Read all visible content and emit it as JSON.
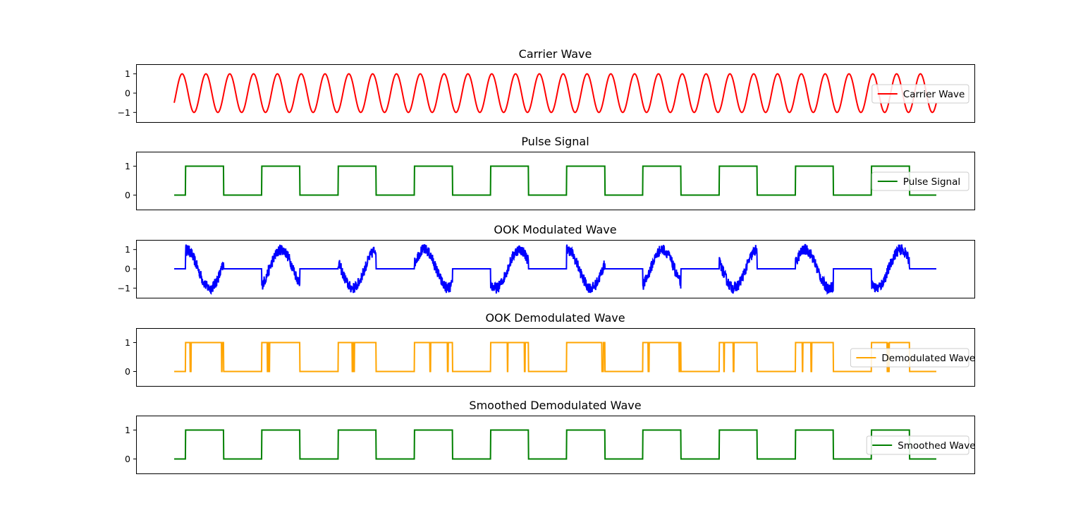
{
  "chart_data": [
    {
      "type": "line",
      "title": "Carrier Wave",
      "color": "#ff0000",
      "legend": "Carrier Wave",
      "legend_position": "right",
      "ylim": [
        -1.5,
        1.5
      ],
      "yticks": [
        {
          "value": 1,
          "label": "1"
        },
        {
          "value": 0,
          "label": "0"
        },
        {
          "value": -1,
          "label": "−1"
        }
      ],
      "xlim": [
        -0.05,
        1.05
      ],
      "xticks": false,
      "signal": {
        "kind": "sine",
        "cycles": 32,
        "phase_deg": -30
      }
    },
    {
      "type": "line",
      "title": "Pulse Signal",
      "color": "#008000",
      "legend": "Pulse Signal",
      "legend_position": "right",
      "ylim": [
        -0.5,
        1.5
      ],
      "yticks": [
        {
          "value": 1,
          "label": "1"
        },
        {
          "value": 0,
          "label": "0"
        }
      ],
      "xlim": [
        -0.05,
        1.05
      ],
      "xticks": false,
      "signal": {
        "kind": "pulse",
        "periods": 10,
        "on_start": 0.15,
        "on_end": 0.65
      }
    },
    {
      "type": "line",
      "title": "OOK Modulated Wave",
      "color": "#0000ff",
      "legend": "",
      "ylim": [
        -1.5,
        1.5
      ],
      "yticks": [
        {
          "value": 1,
          "label": "1"
        },
        {
          "value": 0,
          "label": "0"
        },
        {
          "value": -1,
          "label": "−1"
        }
      ],
      "xlim": [
        -0.05,
        1.05
      ],
      "xticks": false,
      "signal": {
        "kind": "ook",
        "periods": 10,
        "on_start": 0.15,
        "on_end": 0.65,
        "noise": 0.18
      }
    },
    {
      "type": "line",
      "title": "OOK Demodulated Wave",
      "color": "#ffa500",
      "legend": "Demodulated Wave",
      "legend_position": "right",
      "ylim": [
        -0.5,
        1.5
      ],
      "yticks": [
        {
          "value": 1,
          "label": "1"
        },
        {
          "value": 0,
          "label": "0"
        }
      ],
      "xlim": [
        -0.05,
        1.05
      ],
      "xticks": false,
      "signal": {
        "kind": "pulse_glitch",
        "periods": 10,
        "on_start": 0.15,
        "on_end": 0.65,
        "glitches": [
          0.13,
          0.19,
          0.42,
          0.88,
          0.9,
          0.95,
          0.15,
          0.38,
          0.42,
          0.45,
          0.93,
          0.96
        ]
      }
    },
    {
      "type": "line",
      "title": "Smoothed Demodulated Wave",
      "color": "#008000",
      "legend": "Smoothed Wave",
      "legend_position": "right",
      "ylim": [
        -0.5,
        1.5
      ],
      "yticks": [
        {
          "value": 1,
          "label": "1"
        },
        {
          "value": 0,
          "label": "0"
        }
      ],
      "xlim": [
        -0.05,
        1.05
      ],
      "xticks": false,
      "signal": {
        "kind": "pulse",
        "periods": 10,
        "on_start": 0.15,
        "on_end": 0.65
      }
    }
  ]
}
